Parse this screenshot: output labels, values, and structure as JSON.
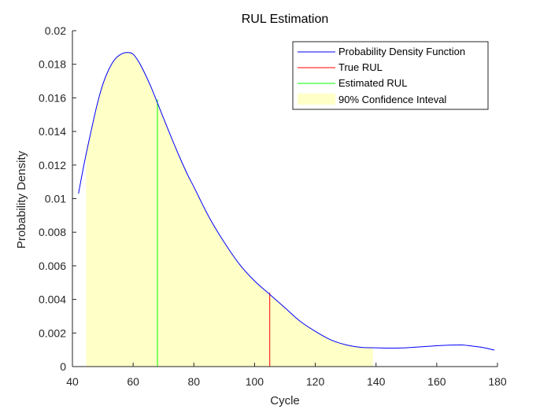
{
  "chart_data": {
    "type": "line",
    "title": "RUL Estimation",
    "xlabel": "Cycle",
    "ylabel": "Probability Density",
    "xlim": [
      40,
      180
    ],
    "ylim": [
      0,
      0.02
    ],
    "xticks": [
      40,
      60,
      80,
      100,
      120,
      140,
      160,
      180
    ],
    "yticks": [
      0,
      0.002,
      0.004,
      0.006,
      0.008,
      0.01,
      0.012,
      0.014,
      0.016,
      0.018,
      0.02
    ],
    "xtick_labels": [
      "40",
      "60",
      "80",
      "100",
      "120",
      "140",
      "160",
      "180"
    ],
    "ytick_labels": [
      "0",
      "0.002",
      "0.004",
      "0.006",
      "0.008",
      "0.01",
      "0.012",
      "0.014",
      "0.016",
      "0.018",
      "0.02"
    ],
    "grid": false,
    "legend_position": "top-right",
    "colors": {
      "pdf": "#0000ff",
      "true_rul": "#ff0000",
      "estimated_rul": "#00ff00",
      "confidence": "#ffffc8"
    },
    "pdf": {
      "name": "Probability Density Function",
      "x": [
        42,
        44,
        46,
        48,
        50,
        52,
        54,
        56,
        58,
        60,
        62,
        64,
        66,
        68,
        70,
        72,
        75,
        78,
        80,
        85,
        90,
        95,
        100,
        105,
        110,
        115,
        120,
        125,
        130,
        135,
        140,
        145,
        150,
        155,
        160,
        165,
        168,
        170,
        175,
        179
      ],
      "y": [
        0.0103,
        0.0122,
        0.0139,
        0.0155,
        0.0168,
        0.0177,
        0.0183,
        0.0186,
        0.0187,
        0.0186,
        0.0181,
        0.0174,
        0.0166,
        0.0157,
        0.0148,
        0.0139,
        0.0126,
        0.0114,
        0.0107,
        0.0089,
        0.0074,
        0.0061,
        0.0051,
        0.0043,
        0.0035,
        0.0027,
        0.0021,
        0.0016,
        0.0013,
        0.00115,
        0.00112,
        0.0011,
        0.00112,
        0.00118,
        0.00124,
        0.00128,
        0.00129,
        0.00126,
        0.00114,
        0.00098
      ]
    },
    "true_rul": {
      "name": "True RUL",
      "x": 105,
      "y": 0.0044
    },
    "estimated_rul": {
      "name": "Estimated RUL",
      "x": 68,
      "y": 0.0159
    },
    "confidence_interval": {
      "name": "90% Confidence Inteval",
      "x_start": 44.5,
      "x_end": 139
    }
  }
}
